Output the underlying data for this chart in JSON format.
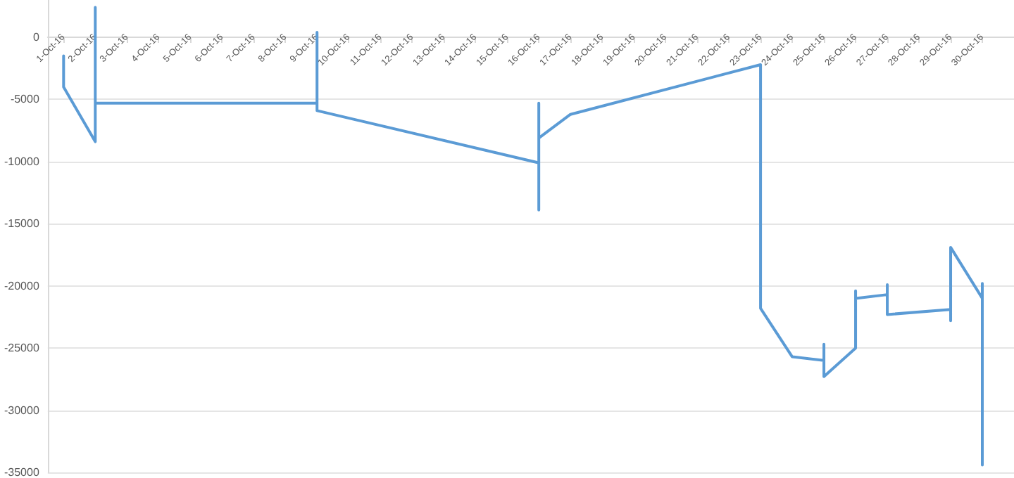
{
  "chart_data": {
    "type": "line",
    "line_style": "solid",
    "marker": "none",
    "grid": "y",
    "x": [
      "--10-01",
      "--10-01",
      "--10-02",
      "--10-02",
      "--10-02",
      "--10-09",
      "--10-09",
      "--10-09",
      "--10-16",
      "--10-16",
      "--10-16",
      "--10-16",
      "--10-17",
      "--10-23",
      "--10-23",
      "--10-24",
      "--10-25",
      "--10-25",
      "--10-25",
      "--10-26",
      "--10-26",
      "--10-26",
      "--10-27",
      "--10-27",
      "--10-27",
      "--10-29",
      "--10-29",
      "--10-29",
      "--10-30",
      "--10-30",
      "--10-30"
    ],
    "series": [
      {
        "color": "#5b9bd5",
        "values": [
          -1500,
          -4000,
          -8400,
          2400,
          -5300,
          -5300,
          400,
          -5900,
          -10100,
          -13900,
          -5300,
          -8100,
          -6200,
          -2200,
          -21800,
          -25700,
          -26000,
          -24700,
          -27300,
          -25000,
          -20400,
          -21000,
          -20700,
          -19900,
          -22300,
          -21900,
          -22800,
          -16900,
          -21000,
          -19800,
          -34400
        ]
      }
    ],
    "xlim": [
      "--09-30T12:00",
      "--10-31T00:00"
    ],
    "xticks": [
      {
        "value": "--10-01",
        "label": "1-Oct-16"
      },
      {
        "value": "--10-02",
        "label": "2-Oct-16"
      },
      {
        "value": "--10-03",
        "label": "3-Oct-16"
      },
      {
        "value": "--10-04",
        "label": "4-Oct-16"
      },
      {
        "value": "--10-05",
        "label": "5-Oct-16"
      },
      {
        "value": "--10-06",
        "label": "6-Oct-16"
      },
      {
        "value": "--10-07",
        "label": "7-Oct-16"
      },
      {
        "value": "--10-08",
        "label": "8-Oct-16"
      },
      {
        "value": "--10-09",
        "label": "9-Oct-16"
      },
      {
        "value": "--10-10",
        "label": "10-Oct-16"
      },
      {
        "value": "--10-11",
        "label": "11-Oct-16"
      },
      {
        "value": "--10-12",
        "label": "12-Oct-16"
      },
      {
        "value": "--10-13",
        "label": "13-Oct-16"
      },
      {
        "value": "--10-14",
        "label": "14-Oct-16"
      },
      {
        "value": "--10-15",
        "label": "15-Oct-16"
      },
      {
        "value": "--10-16",
        "label": "16-Oct-16"
      },
      {
        "value": "--10-17",
        "label": "17-Oct-16"
      },
      {
        "value": "--10-18",
        "label": "18-Oct-16"
      },
      {
        "value": "--10-19",
        "label": "19-Oct-16"
      },
      {
        "value": "--10-20",
        "label": "20-Oct-16"
      },
      {
        "value": "--10-21",
        "label": "21-Oct-16"
      },
      {
        "value": "--10-22",
        "label": "22-Oct-16"
      },
      {
        "value": "--10-23",
        "label": "23-Oct-16"
      },
      {
        "value": "--10-24",
        "label": "24-Oct-16"
      },
      {
        "value": "--10-25",
        "label": "25-Oct-16"
      },
      {
        "value": "--10-26",
        "label": "26-Oct-16"
      },
      {
        "value": "--10-27",
        "label": "27-Oct-16"
      },
      {
        "value": "--10-28",
        "label": "28-Oct-16"
      },
      {
        "value": "--10-29",
        "label": "29-Oct-16"
      },
      {
        "value": "--10-30",
        "label": "30-Oct-16"
      }
    ],
    "ylim": [
      -35000,
      3000
    ],
    "yticks": [
      -35000,
      -30000,
      -25000,
      -20000,
      -15000,
      -10000,
      -5000,
      0
    ]
  }
}
